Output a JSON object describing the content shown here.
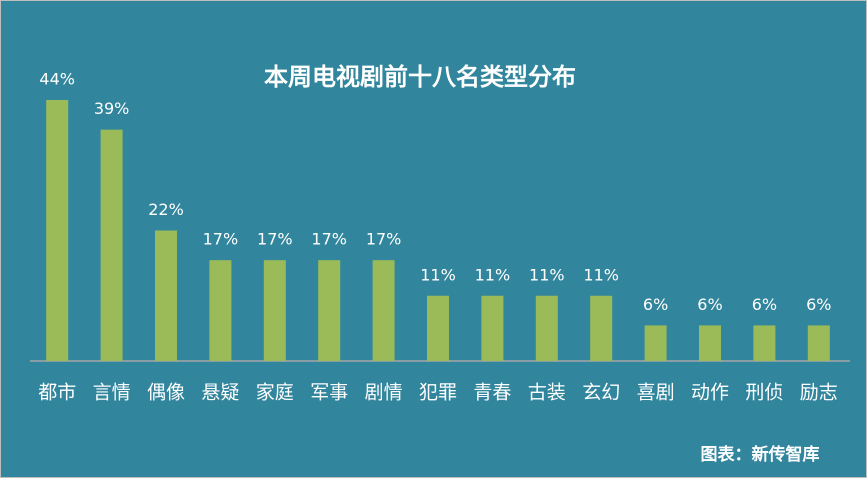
{
  "chart_data": {
    "type": "bar",
    "title": "本周电视剧前十八名类型分布",
    "categories": [
      "都市",
      "言情",
      "偶像",
      "悬疑",
      "家庭",
      "军事",
      "剧情",
      "犯罪",
      "青春",
      "古装",
      "玄幻",
      "喜剧",
      "动作",
      "刑侦",
      "励志"
    ],
    "values": [
      44,
      39,
      22,
      17,
      17,
      17,
      17,
      11,
      11,
      11,
      11,
      6,
      6,
      6,
      6
    ],
    "value_labels": [
      "44%",
      "39%",
      "22%",
      "17%",
      "17%",
      "17%",
      "17%",
      "11%",
      "11%",
      "11%",
      "11%",
      "6%",
      "6%",
      "6%",
      "6%"
    ],
    "color": "#9bbb59",
    "source": "图表：新传智库"
  }
}
